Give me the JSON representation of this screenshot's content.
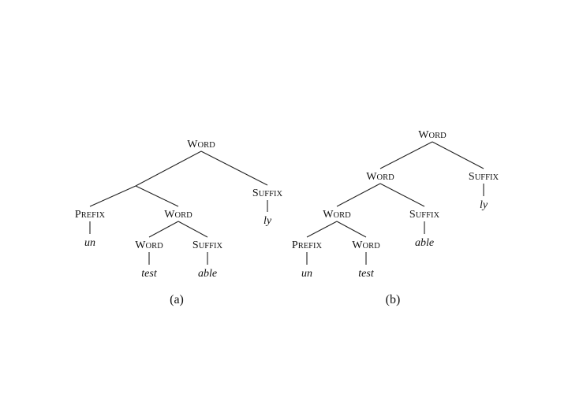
{
  "labels": {
    "word": "Word",
    "prefix": "Prefix",
    "suffix": "Suffix"
  },
  "trees": [
    {
      "caption": "(a)",
      "nodes": [
        {
          "id": "a-root",
          "label": "word"
        },
        {
          "id": "a-prefix",
          "label": "prefix",
          "parent": "a-root",
          "via": "a-split"
        },
        {
          "id": "a-un",
          "text": "un",
          "parent": "a-prefix"
        },
        {
          "id": "a-word1",
          "label": "word",
          "parent": "a-root",
          "via": "a-split"
        },
        {
          "id": "a-word2",
          "label": "word",
          "parent": "a-word1"
        },
        {
          "id": "a-test",
          "text": "test",
          "parent": "a-word2"
        },
        {
          "id": "a-suffix1",
          "label": "suffix",
          "parent": "a-word1"
        },
        {
          "id": "a-able",
          "text": "able",
          "parent": "a-suffix1"
        },
        {
          "id": "a-suffix2",
          "label": "suffix",
          "parent": "a-root"
        },
        {
          "id": "a-ly",
          "text": "ly",
          "parent": "a-suffix2"
        }
      ]
    },
    {
      "caption": "(b)",
      "nodes": [
        {
          "id": "b-root",
          "label": "word"
        },
        {
          "id": "b-word1",
          "label": "word",
          "parent": "b-root"
        },
        {
          "id": "b-word2",
          "label": "word",
          "parent": "b-word1"
        },
        {
          "id": "b-prefix",
          "label": "prefix",
          "parent": "b-word2"
        },
        {
          "id": "b-un",
          "text": "un",
          "parent": "b-prefix"
        },
        {
          "id": "b-word3",
          "label": "word",
          "parent": "b-word2"
        },
        {
          "id": "b-test",
          "text": "test",
          "parent": "b-word3"
        },
        {
          "id": "b-suffix1",
          "label": "suffix",
          "parent": "b-word1"
        },
        {
          "id": "b-able",
          "text": "able",
          "parent": "b-suffix1"
        },
        {
          "id": "b-suffix2",
          "label": "suffix",
          "parent": "b-root"
        },
        {
          "id": "b-ly",
          "text": "ly",
          "parent": "b-suffix2"
        }
      ]
    }
  ]
}
